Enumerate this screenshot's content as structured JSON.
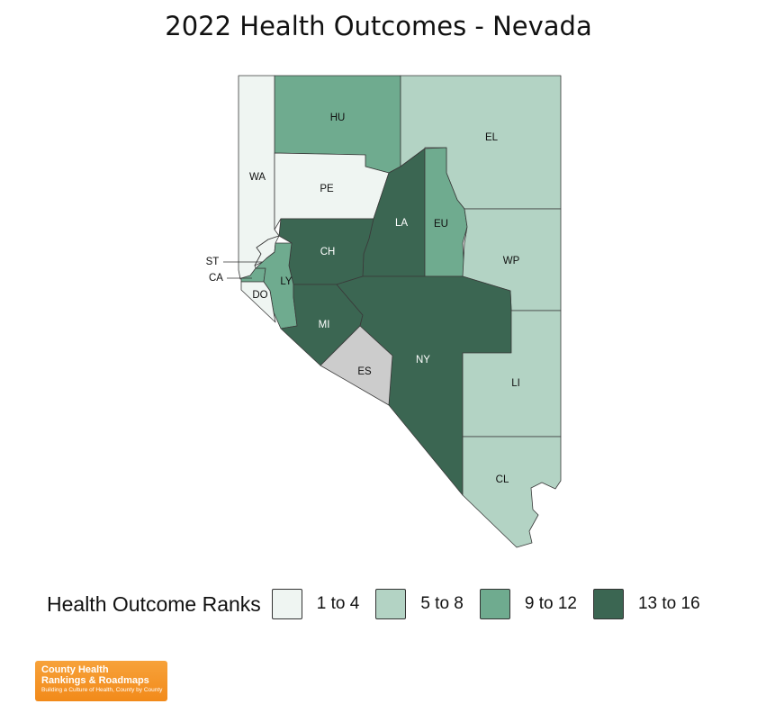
{
  "title": "2022 Health Outcomes - Nevada",
  "legend": {
    "title": "Health Outcome Ranks",
    "items": [
      {
        "label": "1 to 4",
        "color": "#eff5f2"
      },
      {
        "label": "5 to 8",
        "color": "#b3d3c4"
      },
      {
        "label": "9 to 12",
        "color": "#6fab8f"
      },
      {
        "label": "13 to 16",
        "color": "#3b6652"
      }
    ]
  },
  "no_data_color": "#cccccc",
  "counties": [
    {
      "abbr": "HU",
      "rank_group": "9 to 12"
    },
    {
      "abbr": "EL",
      "rank_group": "5 to 8"
    },
    {
      "abbr": "WA",
      "rank_group": "1 to 4"
    },
    {
      "abbr": "PE",
      "rank_group": "1 to 4"
    },
    {
      "abbr": "LA",
      "rank_group": "13 to 16"
    },
    {
      "abbr": "EU",
      "rank_group": "9 to 12"
    },
    {
      "abbr": "CH",
      "rank_group": "13 to 16"
    },
    {
      "abbr": "WP",
      "rank_group": "5 to 8"
    },
    {
      "abbr": "ST",
      "rank_group": "1 to 4"
    },
    {
      "abbr": "CA",
      "rank_group": "9 to 12"
    },
    {
      "abbr": "LY",
      "rank_group": "9 to 12"
    },
    {
      "abbr": "DO",
      "rank_group": "1 to 4"
    },
    {
      "abbr": "MI",
      "rank_group": "13 to 16"
    },
    {
      "abbr": "NY",
      "rank_group": "13 to 16"
    },
    {
      "abbr": "ES",
      "rank_group": ""
    },
    {
      "abbr": "LI",
      "rank_group": "5 to 8"
    },
    {
      "abbr": "CL",
      "rank_group": "5 to 8"
    }
  ],
  "logo": {
    "line1": "County Health",
    "line2": "Rankings & Roadmaps",
    "tagline": "Building a Culture of Health, County by County"
  }
}
